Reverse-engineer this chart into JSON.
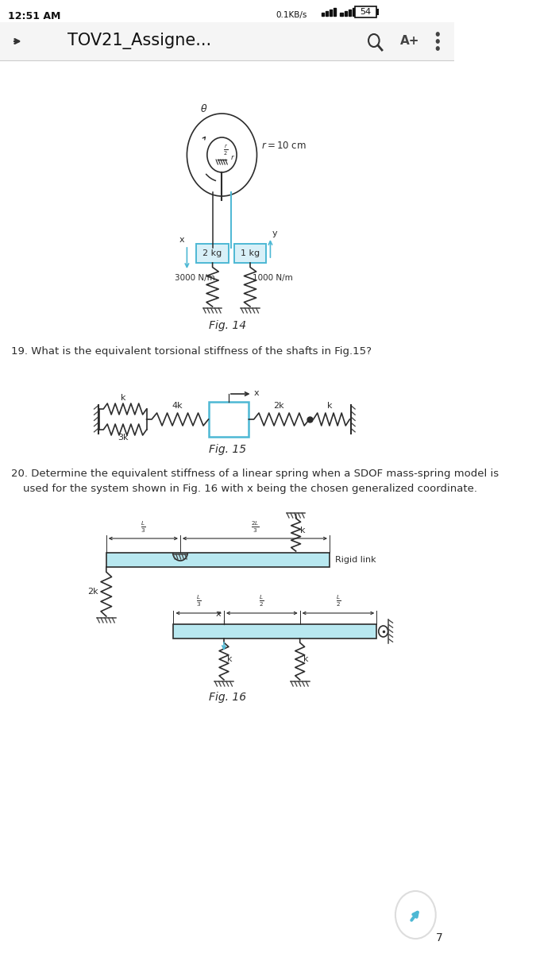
{
  "bg_color": "#ffffff",
  "time_text": "12:51 AM",
  "battery_text": "54",
  "kb_text": "0.1KB/s",
  "nav_title": "TOV21_Assigne...",
  "fig14_caption": "Fig. 14",
  "q19_text": "19. What is the equivalent torsional stiffness of the shafts in Fig.15?",
  "fig15_caption": "Fig. 15",
  "q20_text1": "20. Determine the equivalent stiffness of a linear spring when a SDOF mass-spring model is",
  "q20_text2": "used for the system shown in Fig. 16 with x being the chosen generalized coordinate.",
  "fig16_caption": "Fig. 16",
  "page_num": "7",
  "accent_color": "#4db8d4",
  "line_color": "#2c2c2c",
  "rigid_fill": "#b8e8f0",
  "mass_fill": "#d8f0f8",
  "mass_border": "#4db8d4",
  "ground_color": "#444444"
}
